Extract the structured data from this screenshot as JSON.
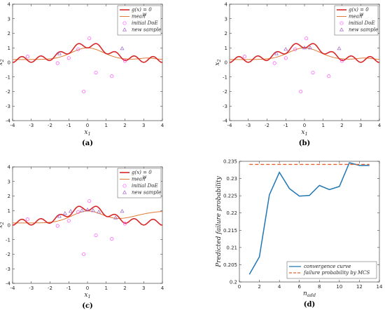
{
  "chart_data": [
    {
      "id": "a",
      "panel_label": "(a)",
      "type": "line",
      "xlabel": "x",
      "xlabel_sub": "1",
      "ylabel": "x",
      "ylabel_sub": "2",
      "xlim": [
        -4,
        4
      ],
      "ylim": [
        -4,
        4
      ],
      "xticks": [
        -4,
        -3,
        -2,
        -1,
        0,
        1,
        2,
        3,
        4
      ],
      "yticks": [
        -4,
        -3,
        -2,
        -1,
        0,
        1,
        2,
        3,
        4
      ],
      "legend_position": "top-right",
      "legend": [
        "g(x) = 0",
        "mean",
        "initial DoE",
        "new sample"
      ],
      "legend_mean_sup": "w",
      "colors": {
        "limit_state": "#d62728",
        "mean": "#e07b39",
        "doe": "#ff4fff",
        "new": "#a064c8"
      },
      "mean_model": "flat",
      "initial_doe": [
        [
          -3.2,
          0.4
        ],
        [
          -1.6,
          -0.05
        ],
        [
          -1.0,
          0.3
        ],
        [
          -0.5,
          0.9
        ],
        [
          0.1,
          1.65
        ],
        [
          -0.2,
          -2.0
        ],
        [
          0.45,
          -0.7
        ],
        [
          1.3,
          -0.95
        ],
        [
          2.0,
          0.1
        ]
      ],
      "new_samples": [
        [
          -1.5,
          0.6
        ],
        [
          1.85,
          0.95
        ]
      ]
    },
    {
      "id": "b",
      "panel_label": "(b)",
      "type": "line",
      "xlabel": "x",
      "xlabel_sub": "1",
      "ylabel": "x",
      "ylabel_sub": "2",
      "xlim": [
        -4,
        4
      ],
      "ylim": [
        -4,
        4
      ],
      "xticks": [
        -4,
        -3,
        -2,
        -1,
        0,
        1,
        2,
        3,
        4
      ],
      "yticks": [
        -4,
        -3,
        -2,
        -1,
        0,
        1,
        2,
        3,
        4
      ],
      "legend_position": "top-right",
      "legend": [
        "g(x) = 0",
        "mean",
        "initial DoE",
        "new sample"
      ],
      "legend_mean_sup": "w",
      "colors": {
        "limit_state": "#d62728",
        "mean": "#e07b39",
        "doe": "#ff4fff",
        "new": "#a064c8"
      },
      "mean_model": "flat",
      "initial_doe": [
        [
          -3.2,
          0.4
        ],
        [
          -1.6,
          -0.05
        ],
        [
          -1.0,
          0.3
        ],
        [
          -0.5,
          0.9
        ],
        [
          0.1,
          1.65
        ],
        [
          -0.2,
          -2.0
        ],
        [
          0.45,
          -0.7
        ],
        [
          1.3,
          -0.95
        ],
        [
          2.0,
          0.1
        ]
      ],
      "new_samples": [
        [
          -1.5,
          0.6
        ],
        [
          -1.0,
          0.9
        ],
        [
          0.0,
          1.0
        ],
        [
          0.3,
          1.0
        ],
        [
          1.85,
          0.95
        ]
      ]
    },
    {
      "id": "c",
      "panel_label": "(c)",
      "type": "line",
      "xlabel": "x",
      "xlabel_sub": "1",
      "ylabel": "x",
      "ylabel_sub": "2",
      "xlim": [
        -4,
        4
      ],
      "ylim": [
        -4,
        4
      ],
      "xticks": [
        -4,
        -3,
        -2,
        -1,
        0,
        1,
        2,
        3,
        4
      ],
      "yticks": [
        -4,
        -3,
        -2,
        -1,
        0,
        1,
        2,
        3,
        4
      ],
      "legend_position": "top-right",
      "legend": [
        "g(x) = 0",
        "mean",
        "initial DoE",
        "new sample"
      ],
      "legend_mean_sup": "w",
      "colors": {
        "limit_state": "#d62728",
        "mean": "#e07b39",
        "doe": "#ff4fff",
        "new": "#a064c8"
      },
      "mean_model": "rising",
      "initial_doe": [
        [
          -3.2,
          0.4
        ],
        [
          -1.6,
          -0.05
        ],
        [
          -1.0,
          0.3
        ],
        [
          -0.5,
          0.9
        ],
        [
          0.1,
          1.65
        ],
        [
          -0.2,
          -2.0
        ],
        [
          0.45,
          -0.7
        ],
        [
          1.3,
          -0.95
        ],
        [
          2.0,
          0.1
        ]
      ],
      "new_samples": [
        [
          -1.5,
          0.6
        ],
        [
          -1.2,
          0.8
        ],
        [
          -0.9,
          0.95
        ],
        [
          -0.3,
          1.0
        ],
        [
          0.0,
          1.05
        ],
        [
          0.3,
          1.0
        ],
        [
          0.6,
          0.9
        ],
        [
          1.5,
          0.5
        ],
        [
          1.85,
          0.95
        ]
      ]
    },
    {
      "id": "d",
      "panel_label": "(d)",
      "type": "line",
      "xlabel": "n",
      "xlabel_sub": "add",
      "ylabel": "Predicted failure probability",
      "xlim": [
        0,
        14
      ],
      "ylim": [
        0.2,
        0.235
      ],
      "xticks": [
        0,
        2,
        4,
        6,
        8,
        10,
        12,
        14
      ],
      "yticks": [
        0.2,
        0.205,
        0.21,
        0.215,
        0.22,
        0.225,
        0.23,
        0.235
      ],
      "ytick_labels": [
        "0.2",
        "0.205",
        "0.21",
        "0.215",
        "0.22",
        "0.225",
        "0.23",
        "0.235"
      ],
      "legend_position": "bottom-right",
      "series": [
        {
          "name": "convergence curve",
          "color": "#1f77b4",
          "x": [
            1,
            2,
            3,
            4,
            5,
            6,
            7,
            8,
            9,
            10,
            11,
            12,
            13
          ],
          "y": [
            0.2022,
            0.2073,
            0.2253,
            0.2318,
            0.2271,
            0.2249,
            0.2251,
            0.228,
            0.2268,
            0.2277,
            0.2346,
            0.2338,
            0.2338
          ]
        },
        {
          "name": "failure probability by MCS",
          "color": "#e8602c",
          "dashed": true,
          "x": [
            1,
            13
          ],
          "y": [
            0.2341,
            0.2341
          ]
        }
      ]
    }
  ]
}
